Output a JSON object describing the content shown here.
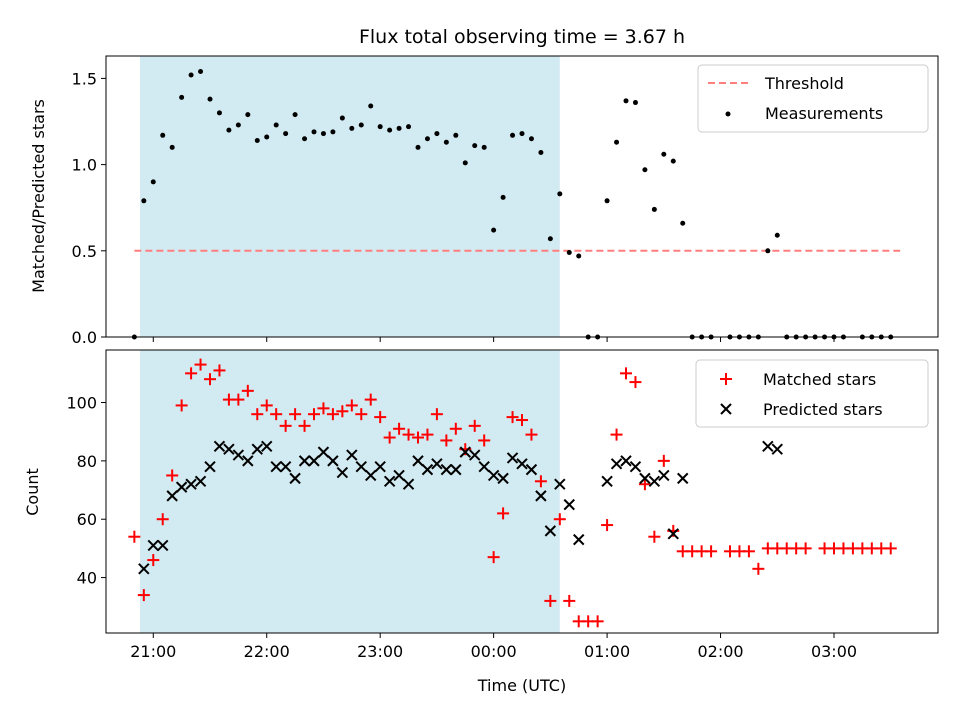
{
  "chart_data": [
    {
      "type": "scatter",
      "title": "Flux total observing time = 3.67 h",
      "xlabel": "",
      "ylabel": "Matched/Predicted stars",
      "xlim": [
        "20:35",
        "03:55"
      ],
      "ylim": [
        0,
        1.63
      ],
      "yticks": [
        "0.0",
        "0.5",
        "1.0",
        "1.5"
      ],
      "shaded_region": [
        "20:53",
        "00:35"
      ],
      "shaded_color": "#add8e6",
      "threshold": {
        "name": "Threshold",
        "y": 0.5,
        "x_range": [
          "20:50",
          "03:35"
        ],
        "color": "#ff7f7f"
      },
      "legend": {
        "placement": "top-right",
        "entries": [
          "Threshold",
          "Measurements"
        ]
      },
      "series": [
        {
          "name": "Measurements",
          "marker": "dot",
          "color": "#000000",
          "points": [
            [
              "20:50",
              0
            ],
            [
              "20:55",
              0.79
            ],
            [
              "21:00",
              0.9
            ],
            [
              "21:05",
              1.17
            ],
            [
              "21:10",
              1.1
            ],
            [
              "21:15",
              1.39
            ],
            [
              "21:20",
              1.52
            ],
            [
              "21:25",
              1.54
            ],
            [
              "21:30",
              1.38
            ],
            [
              "21:35",
              1.3
            ],
            [
              "21:40",
              1.2
            ],
            [
              "21:45",
              1.23
            ],
            [
              "21:50",
              1.29
            ],
            [
              "21:55",
              1.14
            ],
            [
              "22:00",
              1.16
            ],
            [
              "22:05",
              1.23
            ],
            [
              "22:10",
              1.18
            ],
            [
              "22:15",
              1.29
            ],
            [
              "22:20",
              1.15
            ],
            [
              "22:25",
              1.19
            ],
            [
              "22:30",
              1.18
            ],
            [
              "22:35",
              1.19
            ],
            [
              "22:40",
              1.27
            ],
            [
              "22:45",
              1.21
            ],
            [
              "22:50",
              1.23
            ],
            [
              "22:55",
              1.34
            ],
            [
              "23:00",
              1.22
            ],
            [
              "23:05",
              1.2
            ],
            [
              "23:10",
              1.21
            ],
            [
              "23:15",
              1.22
            ],
            [
              "23:20",
              1.1
            ],
            [
              "23:25",
              1.15
            ],
            [
              "23:30",
              1.18
            ],
            [
              "23:35",
              1.13
            ],
            [
              "23:40",
              1.17
            ],
            [
              "23:45",
              1.01
            ],
            [
              "23:50",
              1.11
            ],
            [
              "23:55",
              1.1
            ],
            [
              "00:00",
              0.62
            ],
            [
              "00:05",
              0.81
            ],
            [
              "00:10",
              1.17
            ],
            [
              "00:15",
              1.18
            ],
            [
              "00:20",
              1.15
            ],
            [
              "00:25",
              1.07
            ],
            [
              "00:30",
              0.57
            ],
            [
              "00:35",
              0.83
            ],
            [
              "00:40",
              0.49
            ],
            [
              "00:45",
              0.47
            ],
            [
              "00:50",
              0
            ],
            [
              "00:55",
              0
            ],
            [
              "01:00",
              0.79
            ],
            [
              "01:05",
              1.13
            ],
            [
              "01:10",
              1.37
            ],
            [
              "01:15",
              1.36
            ],
            [
              "01:20",
              0.97
            ],
            [
              "01:25",
              0.74
            ],
            [
              "01:30",
              1.06
            ],
            [
              "01:35",
              1.02
            ],
            [
              "01:40",
              0.66
            ],
            [
              "01:45",
              0
            ],
            [
              "01:50",
              0
            ],
            [
              "01:55",
              0
            ],
            [
              "02:05",
              0
            ],
            [
              "02:10",
              0
            ],
            [
              "02:15",
              0
            ],
            [
              "02:20",
              0
            ],
            [
              "02:25",
              0.5
            ],
            [
              "02:30",
              0.59
            ],
            [
              "02:35",
              0
            ],
            [
              "02:40",
              0
            ],
            [
              "02:45",
              0
            ],
            [
              "02:50",
              0
            ],
            [
              "02:55",
              0
            ],
            [
              "03:00",
              0
            ],
            [
              "03:05",
              0
            ],
            [
              "03:15",
              0
            ],
            [
              "03:20",
              0
            ],
            [
              "03:25",
              0
            ],
            [
              "03:30",
              0
            ]
          ]
        }
      ]
    },
    {
      "type": "scatter",
      "title": "",
      "xlabel": "Time (UTC)",
      "ylabel": "Count",
      "xlim": [
        "20:35",
        "03:55"
      ],
      "ylim": [
        21,
        118
      ],
      "yticks": [
        "40",
        "60",
        "80",
        "100"
      ],
      "xticks": [
        "21:00",
        "22:00",
        "23:00",
        "00:00",
        "01:00",
        "02:00",
        "03:00"
      ],
      "shaded_region": [
        "20:53",
        "00:35"
      ],
      "shaded_color": "#add8e6",
      "legend": {
        "placement": "top-right",
        "entries": [
          "Matched stars",
          "Predicted stars"
        ]
      },
      "series": [
        {
          "name": "Matched stars",
          "marker": "plus",
          "color": "#ff0000",
          "points": [
            [
              "20:50",
              54
            ],
            [
              "20:55",
              34
            ],
            [
              "21:00",
              46
            ],
            [
              "21:05",
              60
            ],
            [
              "21:10",
              75
            ],
            [
              "21:15",
              99
            ],
            [
              "21:20",
              110
            ],
            [
              "21:25",
              113
            ],
            [
              "21:30",
              108
            ],
            [
              "21:35",
              111
            ],
            [
              "21:40",
              101
            ],
            [
              "21:45",
              101
            ],
            [
              "21:50",
              104
            ],
            [
              "21:55",
              96
            ],
            [
              "22:00",
              99
            ],
            [
              "22:05",
              96
            ],
            [
              "22:10",
              92
            ],
            [
              "22:15",
              96
            ],
            [
              "22:20",
              92
            ],
            [
              "22:25",
              96
            ],
            [
              "22:30",
              98
            ],
            [
              "22:35",
              96
            ],
            [
              "22:40",
              97
            ],
            [
              "22:45",
              99
            ],
            [
              "22:50",
              96
            ],
            [
              "22:55",
              101
            ],
            [
              "23:00",
              95
            ],
            [
              "23:05",
              88
            ],
            [
              "23:10",
              91
            ],
            [
              "23:15",
              89
            ],
            [
              "23:20",
              88
            ],
            [
              "23:25",
              89
            ],
            [
              "23:30",
              96
            ],
            [
              "23:35",
              87
            ],
            [
              "23:40",
              91
            ],
            [
              "23:45",
              84
            ],
            [
              "23:50",
              92
            ],
            [
              "23:55",
              87
            ],
            [
              "00:00",
              47
            ],
            [
              "00:05",
              62
            ],
            [
              "00:10",
              95
            ],
            [
              "00:15",
              94
            ],
            [
              "00:20",
              89
            ],
            [
              "00:25",
              73
            ],
            [
              "00:30",
              32
            ],
            [
              "00:35",
              60
            ],
            [
              "00:40",
              32
            ],
            [
              "00:45",
              25
            ],
            [
              "00:50",
              25
            ],
            [
              "00:55",
              25
            ],
            [
              "01:00",
              58
            ],
            [
              "01:05",
              89
            ],
            [
              "01:10",
              110
            ],
            [
              "01:15",
              107
            ],
            [
              "01:20",
              72
            ],
            [
              "01:25",
              54
            ],
            [
              "01:30",
              80
            ],
            [
              "01:35",
              56
            ],
            [
              "01:40",
              49
            ],
            [
              "01:45",
              49
            ],
            [
              "01:50",
              49
            ],
            [
              "01:55",
              49
            ],
            [
              "02:05",
              49
            ],
            [
              "02:10",
              49
            ],
            [
              "02:15",
              49
            ],
            [
              "02:20",
              43
            ],
            [
              "02:25",
              50
            ],
            [
              "02:30",
              50
            ],
            [
              "02:35",
              50
            ],
            [
              "02:40",
              50
            ],
            [
              "02:45",
              50
            ],
            [
              "02:55",
              50
            ],
            [
              "03:00",
              50
            ],
            [
              "03:05",
              50
            ],
            [
              "03:10",
              50
            ],
            [
              "03:15",
              50
            ],
            [
              "03:20",
              50
            ],
            [
              "03:25",
              50
            ],
            [
              "03:30",
              50
            ]
          ]
        },
        {
          "name": "Predicted stars",
          "marker": "x",
          "color": "#000000",
          "points": [
            [
              "20:55",
              43
            ],
            [
              "21:00",
              51
            ],
            [
              "21:05",
              51
            ],
            [
              "21:10",
              68
            ],
            [
              "21:15",
              71
            ],
            [
              "21:20",
              72
            ],
            [
              "21:25",
              73
            ],
            [
              "21:30",
              78
            ],
            [
              "21:35",
              85
            ],
            [
              "21:40",
              84
            ],
            [
              "21:45",
              82
            ],
            [
              "21:50",
              80
            ],
            [
              "21:55",
              84
            ],
            [
              "22:00",
              85
            ],
            [
              "22:05",
              78
            ],
            [
              "22:10",
              78
            ],
            [
              "22:15",
              74
            ],
            [
              "22:20",
              80
            ],
            [
              "22:25",
              80
            ],
            [
              "22:30",
              83
            ],
            [
              "22:35",
              80
            ],
            [
              "22:40",
              76
            ],
            [
              "22:45",
              82
            ],
            [
              "22:50",
              78
            ],
            [
              "22:55",
              75
            ],
            [
              "23:00",
              78
            ],
            [
              "23:05",
              73
            ],
            [
              "23:10",
              75
            ],
            [
              "23:15",
              72
            ],
            [
              "23:20",
              80
            ],
            [
              "23:25",
              77
            ],
            [
              "23:30",
              79
            ],
            [
              "23:35",
              77
            ],
            [
              "23:40",
              77
            ],
            [
              "23:45",
              83
            ],
            [
              "23:50",
              82
            ],
            [
              "23:55",
              78
            ],
            [
              "00:00",
              75
            ],
            [
              "00:05",
              74
            ],
            [
              "00:10",
              81
            ],
            [
              "00:15",
              79
            ],
            [
              "00:20",
              77
            ],
            [
              "00:25",
              68
            ],
            [
              "00:30",
              56
            ],
            [
              "00:35",
              72
            ],
            [
              "00:40",
              65
            ],
            [
              "00:45",
              53
            ],
            [
              "01:00",
              73
            ],
            [
              "01:05",
              79
            ],
            [
              "01:10",
              80
            ],
            [
              "01:15",
              78
            ],
            [
              "01:20",
              74
            ],
            [
              "01:25",
              73
            ],
            [
              "01:30",
              75
            ],
            [
              "01:35",
              55
            ],
            [
              "01:40",
              74
            ],
            [
              "02:25",
              85
            ],
            [
              "02:30",
              84
            ]
          ]
        }
      ]
    }
  ]
}
